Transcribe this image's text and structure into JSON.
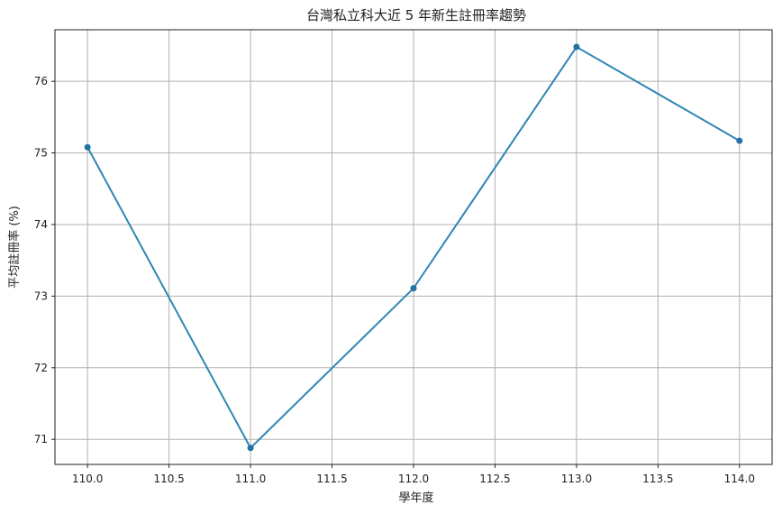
{
  "chart_data": {
    "type": "line",
    "title": "台灣私立科大近 5 年新生註冊率趨勢",
    "xlabel": "學年度",
    "ylabel": "平均註冊率 (%)",
    "x": [
      110.0,
      111.0,
      112.0,
      113.0,
      114.0
    ],
    "series": [
      {
        "values": [
          75.08,
          70.88,
          73.11,
          76.48,
          75.17
        ]
      }
    ],
    "xlim": [
      109.8,
      114.2
    ],
    "ylim": [
      70.65,
      76.72
    ],
    "xticks": [
      "110.0",
      "110.5",
      "111.0",
      "111.5",
      "112.0",
      "112.5",
      "113.0",
      "113.5",
      "114.0"
    ],
    "yticks": [
      "71",
      "72",
      "73",
      "74",
      "75",
      "76"
    ],
    "grid": true,
    "markers": true,
    "line_color": "#2e86b4",
    "marker_color": "#2471a3"
  }
}
